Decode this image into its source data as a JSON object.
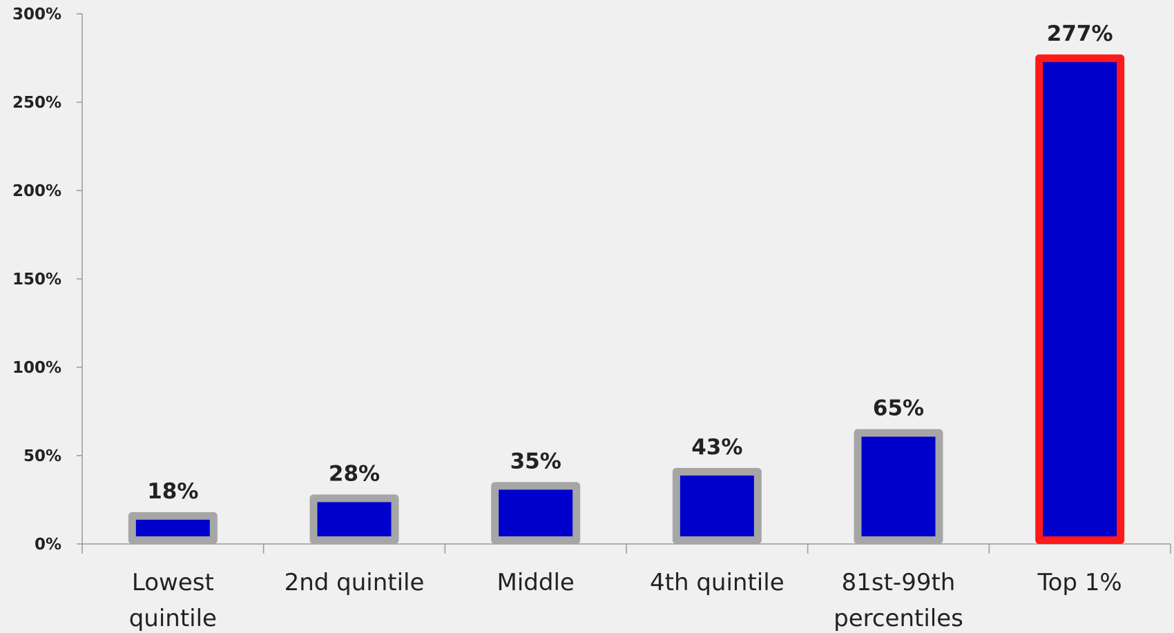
{
  "chart_data": {
    "type": "bar",
    "categories": [
      [
        "Lowest",
        "quintile"
      ],
      [
        "2nd quintile"
      ],
      [
        "Middle"
      ],
      [
        "4th quintile"
      ],
      [
        "81st-99th",
        "percentiles"
      ],
      [
        "Top 1%"
      ]
    ],
    "values": [
      18,
      28,
      35,
      43,
      65,
      277
    ],
    "data_labels": [
      "18%",
      "28%",
      "35%",
      "43%",
      "65%",
      "277%"
    ],
    "yticks": [
      0,
      50,
      100,
      150,
      200,
      250,
      300
    ],
    "ytick_labels": [
      "0%",
      "50%",
      "100%",
      "150%",
      "200%",
      "250%",
      "300%"
    ],
    "ylim": [
      0,
      300
    ],
    "title": "",
    "xlabel": "",
    "ylabel": "",
    "grid": false,
    "legend": "none",
    "colors": {
      "bar_fill": "#0000cc",
      "bar_outline": "#a6a6a6",
      "highlight_outline": "#ff1a1a",
      "highlight_index": 5,
      "axis": "#999999",
      "background": "#f0f0f0"
    }
  }
}
